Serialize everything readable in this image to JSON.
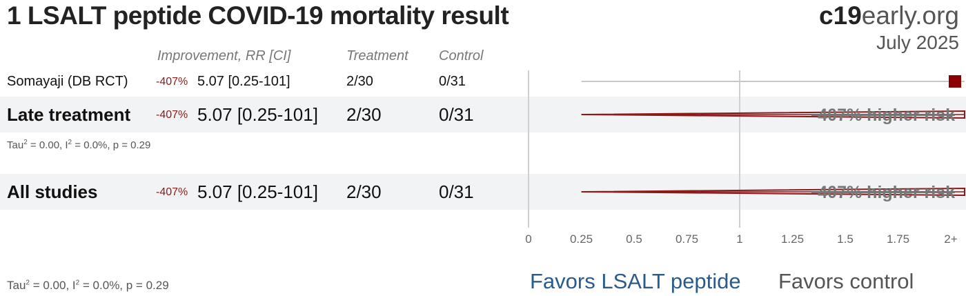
{
  "title": "1 LSALT peptide COVID-19 mortality result",
  "brand": {
    "part1": "c19",
    "part2": "early",
    "part3": ".org"
  },
  "date": "July 2025",
  "headers": {
    "improvement": "Improvement, RR [CI]",
    "treatment": "Treatment",
    "control": "Control"
  },
  "rows": [
    {
      "label": "Somayaji (DB RCT)",
      "pct": "-407%",
      "rr": "5.07 [0.25-101]",
      "treatment": "2/30",
      "control": "0/31"
    },
    {
      "label": "Late treatment",
      "pct": "-407%",
      "rr": "5.07 [0.25-101]",
      "treatment": "2/30",
      "control": "0/31"
    },
    {
      "label": "All studies",
      "pct": "-407%",
      "rr": "5.07 [0.25-101]",
      "treatment": "2/30",
      "control": "0/31"
    }
  ],
  "late_stats": {
    "tau": "Tau",
    "tau_val": " = 0.00, I",
    "i2_val": " = 0.0%, p = 0.29"
  },
  "all_stats": {
    "tau": "Tau",
    "tau_val": " = 0.00, I",
    "i2_val": " = 0.0%, p = 0.29"
  },
  "risk_label": "407% higher risk",
  "favors": {
    "left": "Favors LSALT peptide",
    "right": "Favors control"
  },
  "chart_data": {
    "type": "forest",
    "x_ticks": [
      "0",
      "0.25",
      "0.5",
      "0.75",
      "1",
      "1.25",
      "1.5",
      "1.75",
      "2+"
    ],
    "xlim": [
      0,
      2
    ],
    "null_line": 1,
    "studies": [
      {
        "name": "Somayaji (DB RCT)",
        "rr": 5.07,
        "ci_low": 0.25,
        "ci_high": 101,
        "kind": "study"
      },
      {
        "name": "Late treatment",
        "rr": 5.07,
        "ci_low": 0.25,
        "ci_high": 101,
        "kind": "summary"
      },
      {
        "name": "All studies",
        "rr": 5.07,
        "ci_low": 0.25,
        "ci_high": 101,
        "kind": "summary"
      }
    ],
    "colors": {
      "point": "#8b0000",
      "ci": "#c8c8c8",
      "summary": "#8b1a1a"
    }
  }
}
